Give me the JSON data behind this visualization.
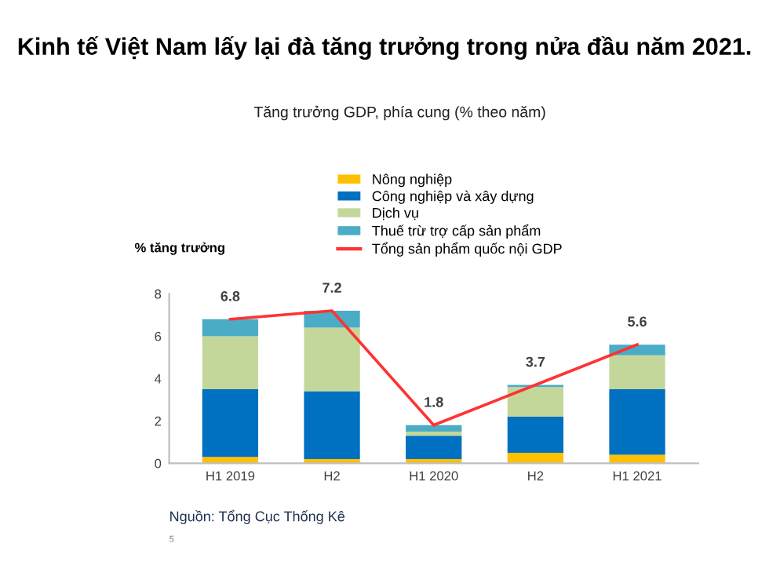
{
  "chart_data": {
    "type": "bar",
    "stacked": true,
    "title": "Kinh tế Việt Nam lấy lại đà tăng trưởng trong nửa đầu năm 2021.",
    "subtitle": "Tăng trưởng GDP, phía cung (% theo năm)",
    "ylabel": "% tăng trưởng",
    "categories": [
      "H1 2019",
      "H2",
      "H1 2020",
      "H2",
      "H1 2021"
    ],
    "series": [
      {
        "name": "Nông nghiệp",
        "color": "#ffc000",
        "values": [
          0.3,
          0.2,
          0.2,
          0.5,
          0.4
        ]
      },
      {
        "name": "Công nghiệp và xây dựng",
        "color": "#0070c0",
        "values": [
          3.2,
          3.2,
          1.1,
          1.7,
          3.1
        ]
      },
      {
        "name": "Dịch vụ",
        "color": "#c4d79b",
        "values": [
          2.5,
          3.0,
          0.2,
          1.4,
          1.6
        ]
      },
      {
        "name": "Thuế trừ trợ cấp sản phẩm",
        "color": "#4bacc6",
        "values": [
          0.8,
          0.8,
          0.3,
          0.1,
          0.5
        ]
      },
      {
        "name": "Tổng sản phẩm quốc nội GDP",
        "type": "line",
        "color": "#ff3333",
        "values": [
          6.8,
          7.2,
          1.8,
          3.7,
          5.6
        ],
        "value_labels": [
          "6.8",
          "7.2",
          "1.8",
          "3.7",
          "5.6"
        ]
      }
    ],
    "ylim": [
      0,
      8
    ],
    "yticks": [
      0,
      2,
      4,
      6,
      8
    ],
    "grid": false,
    "legend": "top",
    "marker": "none",
    "line_style": "solid",
    "annotations": [
      "Nguồn: Tổng Cục Thống Kê",
      "5"
    ]
  }
}
